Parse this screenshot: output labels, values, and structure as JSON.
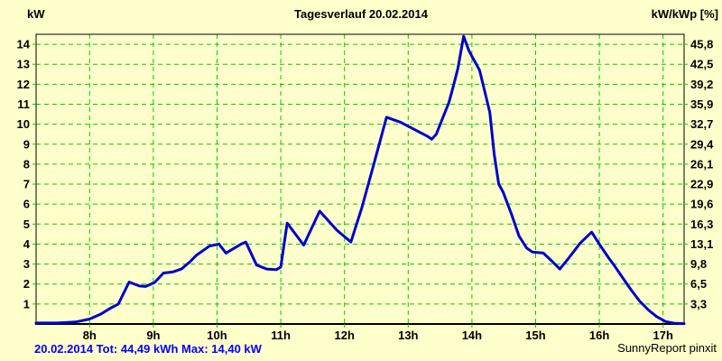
{
  "page": {
    "title": "Tagesverlauf 20.02.2014",
    "left_axis_unit": "kW",
    "right_axis_unit": "kW/kWp [%]",
    "footer_left": "20.02.2014 Tot: 44,49 kWh Max: 14,40 kW",
    "footer_right": "SunnyReport pinxit"
  },
  "colors": {
    "background": "#FFFFCC",
    "grid": "#00CC00",
    "curve": "#0000CC",
    "border": "#000000",
    "text": "#000000",
    "footer_left_text": "#0000FF"
  },
  "chart_data": {
    "type": "line",
    "title": "Tagesverlauf 20.02.2014",
    "date": "20.02.2014",
    "total_kwh": "44,49",
    "max_kw": "14,40",
    "x_unit": "hour of day",
    "y_left_unit": "kW",
    "y_right_unit": "kW/kWp [%]",
    "grid": true,
    "x_range": [
      7.16,
      17.33
    ],
    "ylim": [
      0,
      14.5
    ],
    "x_ticks": [
      {
        "hour": 8,
        "label": "8h"
      },
      {
        "hour": 9,
        "label": "9h"
      },
      {
        "hour": 10,
        "label": "10h"
      },
      {
        "hour": 11,
        "label": "11h"
      },
      {
        "hour": 12,
        "label": "12h"
      },
      {
        "hour": 13,
        "label": "13h"
      },
      {
        "hour": 14,
        "label": "14h"
      },
      {
        "hour": 15,
        "label": "15h"
      },
      {
        "hour": 16,
        "label": "16h"
      },
      {
        "hour": 17,
        "label": "17h"
      }
    ],
    "y_ticks": [
      {
        "kw": 1,
        "left": "1",
        "right": "3,3"
      },
      {
        "kw": 2,
        "left": "2",
        "right": "6,5"
      },
      {
        "kw": 3,
        "left": "3",
        "right": "9,8"
      },
      {
        "kw": 4,
        "left": "4",
        "right": "13,1"
      },
      {
        "kw": 5,
        "left": "5",
        "right": "16,3"
      },
      {
        "kw": 6,
        "left": "6",
        "right": "19,6"
      },
      {
        "kw": 7,
        "left": "7",
        "right": "22,9"
      },
      {
        "kw": 8,
        "left": "8",
        "right": "26,1"
      },
      {
        "kw": 9,
        "left": "9",
        "right": "29,4"
      },
      {
        "kw": 10,
        "left": "10",
        "right": "32,7"
      },
      {
        "kw": 11,
        "left": "11",
        "right": "35,9"
      },
      {
        "kw": 12,
        "left": "12",
        "right": "39,2"
      },
      {
        "kw": 13,
        "left": "13",
        "right": "42,5"
      },
      {
        "kw": 14,
        "left": "14",
        "right": "45,8"
      }
    ],
    "series": [
      {
        "name": "pv_power_kw",
        "points": [
          [
            7.16,
            0.05
          ],
          [
            7.5,
            0.05
          ],
          [
            7.78,
            0.1
          ],
          [
            8.0,
            0.25
          ],
          [
            8.18,
            0.5
          ],
          [
            8.33,
            0.8
          ],
          [
            8.45,
            1.0
          ],
          [
            8.62,
            2.1
          ],
          [
            8.78,
            1.9
          ],
          [
            8.88,
            1.88
          ],
          [
            9.02,
            2.08
          ],
          [
            9.16,
            2.55
          ],
          [
            9.3,
            2.6
          ],
          [
            9.44,
            2.75
          ],
          [
            9.57,
            3.1
          ],
          [
            9.68,
            3.45
          ],
          [
            9.88,
            3.9
          ],
          [
            10.03,
            4.0
          ],
          [
            10.14,
            3.55
          ],
          [
            10.38,
            4.0
          ],
          [
            10.45,
            4.1
          ],
          [
            10.62,
            2.95
          ],
          [
            10.78,
            2.75
          ],
          [
            10.93,
            2.72
          ],
          [
            11.0,
            2.85
          ],
          [
            11.1,
            5.05
          ],
          [
            11.36,
            3.95
          ],
          [
            11.61,
            5.65
          ],
          [
            11.88,
            4.7
          ],
          [
            12.1,
            4.1
          ],
          [
            12.27,
            5.8
          ],
          [
            12.46,
            8.0
          ],
          [
            12.66,
            10.35
          ],
          [
            12.88,
            10.1
          ],
          [
            13.12,
            9.7
          ],
          [
            13.3,
            9.4
          ],
          [
            13.37,
            9.25
          ],
          [
            13.44,
            9.5
          ],
          [
            13.64,
            11.1
          ],
          [
            13.7,
            11.8
          ],
          [
            13.78,
            12.8
          ],
          [
            13.87,
            14.4
          ],
          [
            13.95,
            13.7
          ],
          [
            14.0,
            13.4
          ],
          [
            14.12,
            12.7
          ],
          [
            14.28,
            10.6
          ],
          [
            14.35,
            8.5
          ],
          [
            14.42,
            7.0
          ],
          [
            14.49,
            6.6
          ],
          [
            14.62,
            5.5
          ],
          [
            14.74,
            4.4
          ],
          [
            14.86,
            3.8
          ],
          [
            14.95,
            3.6
          ],
          [
            15.12,
            3.55
          ],
          [
            15.27,
            3.1
          ],
          [
            15.38,
            2.75
          ],
          [
            15.52,
            3.3
          ],
          [
            15.7,
            4.05
          ],
          [
            15.88,
            4.6
          ],
          [
            16.01,
            3.95
          ],
          [
            16.16,
            3.25
          ],
          [
            16.23,
            2.95
          ],
          [
            16.37,
            2.3
          ],
          [
            16.5,
            1.7
          ],
          [
            16.63,
            1.15
          ],
          [
            16.77,
            0.7
          ],
          [
            16.9,
            0.37
          ],
          [
            17.04,
            0.12
          ],
          [
            17.17,
            0.04
          ],
          [
            17.33,
            0.02
          ]
        ]
      }
    ]
  }
}
